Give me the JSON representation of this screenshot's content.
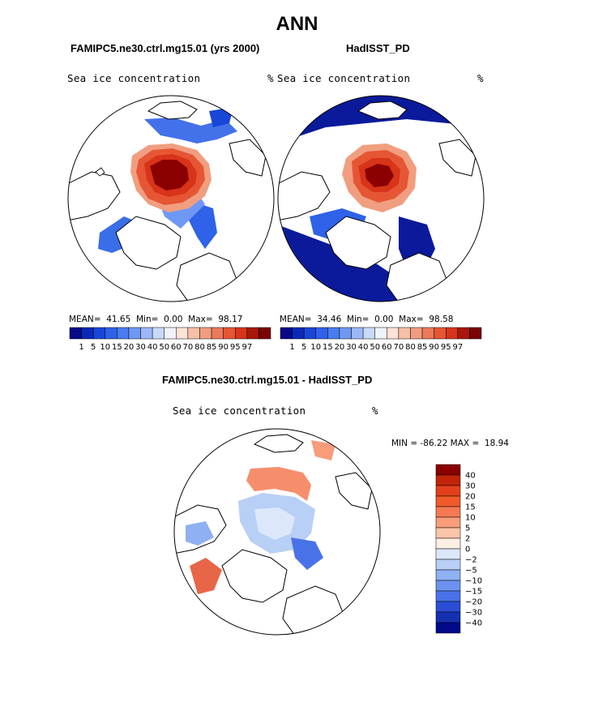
{
  "title": "ANN",
  "left_panel": {
    "header": "FAMIPC5.ne30.ctrl.mg15.01 (yrs 2000)",
    "variable": "Sea ice concentration",
    "units": "%",
    "mean_label": "MEAN=",
    "mean": "41.65",
    "min_label": "Min=",
    "min": "0.00",
    "max_label": "Max=",
    "max": "98.17"
  },
  "right_panel": {
    "header": "HadISST_PD",
    "variable": "Sea ice concentration",
    "units": "%",
    "mean_label": "MEAN=",
    "mean": "34.46",
    "min_label": "Min=",
    "min": "0.00",
    "max_label": "Max=",
    "max": "98.58"
  },
  "diff_panel": {
    "header": "FAMIPC5.ne30.ctrl.mg15.01 - HadISST_PD",
    "variable": "Sea ice concentration",
    "units": "%",
    "minmax": "MIN = -86.22 MAX =  18.94"
  },
  "colorbar_abs": {
    "levels": [
      "1",
      "5",
      "10",
      "15",
      "20",
      "30",
      "40",
      "50",
      "60",
      "70",
      "80",
      "85",
      "90",
      "95",
      "97"
    ],
    "colors": [
      "#08088a",
      "#0a28b8",
      "#1846d8",
      "#2f62e8",
      "#4a7cf0",
      "#6f98f4",
      "#9cb8f8",
      "#c8daf8",
      "#eef3fa",
      "#fbe3d6",
      "#f6c1a6",
      "#f19e80",
      "#ec7a58",
      "#e65634",
      "#d8341a",
      "#a8170a",
      "#7a0404"
    ]
  },
  "colorbar_diff": {
    "levels": [
      "40",
      "30",
      "20",
      "15",
      "10",
      "5",
      "2",
      "0",
      "-2",
      "-5",
      "-10",
      "-15",
      "-20",
      "-30",
      "-40"
    ],
    "colors": [
      "#8b0000",
      "#c0240a",
      "#e2401a",
      "#f25a2a",
      "#f57a52",
      "#f89c7a",
      "#fbc5a8",
      "#fdeee2",
      "#dce8fa",
      "#b8cff6",
      "#8fb0f2",
      "#6a92ee",
      "#4a72e8",
      "#2a4ed6",
      "#1530b0",
      "#000a8a"
    ]
  },
  "map_colors": {
    "land_outline": "#000000",
    "high_ice": "#8b0000",
    "mid_ice": "#e2401a",
    "low_ice": "#f5b79a",
    "edge_ice": "#2f62e8",
    "deep_blue": "#0a1a9a"
  }
}
